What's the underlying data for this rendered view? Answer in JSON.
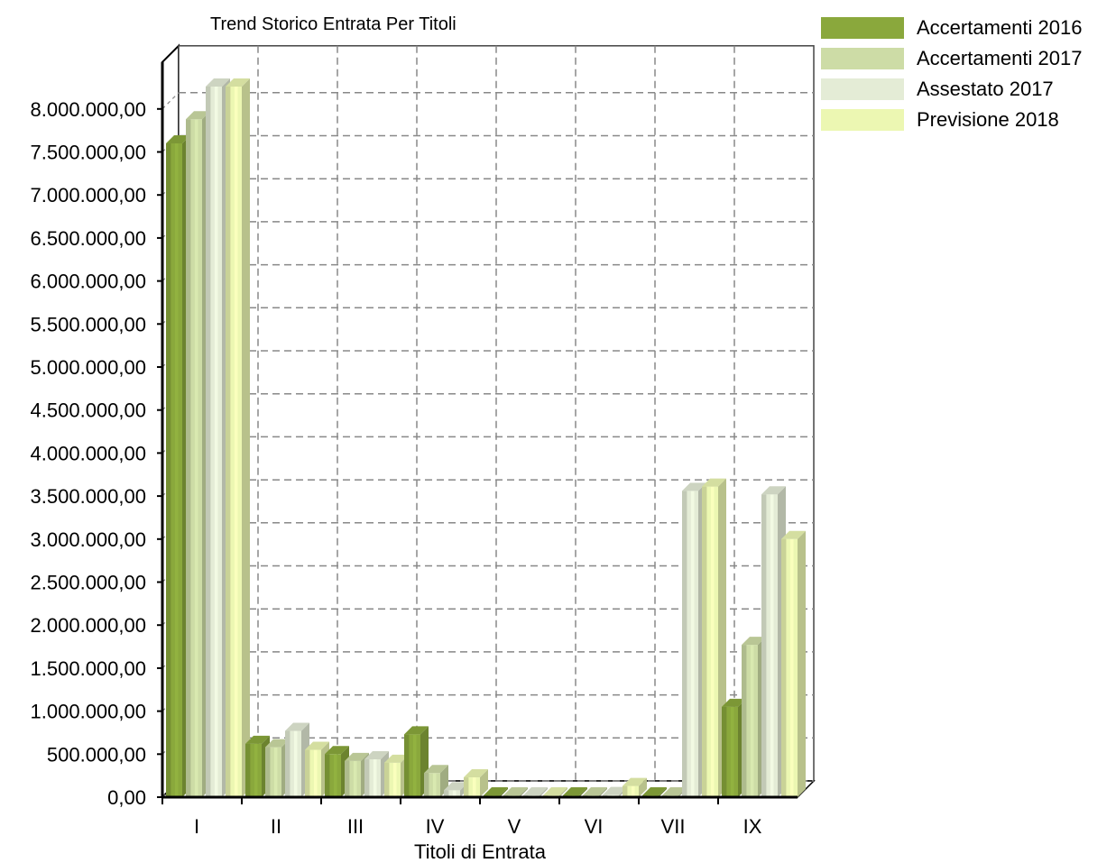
{
  "chart_data": {
    "type": "bar",
    "title": "Trend Storico Entrata Per Titoli",
    "xlabel": "Titoli di Entrata",
    "ylabel": "",
    "categories": [
      "I",
      "II",
      "III",
      "IV",
      "V",
      "VI",
      "VII",
      "IX"
    ],
    "ylim": [
      0,
      8000000
    ],
    "yticks": [
      0,
      500000,
      1000000,
      1500000,
      2000000,
      2500000,
      3000000,
      3500000,
      4000000,
      4500000,
      5000000,
      5500000,
      6000000,
      6500000,
      7000000,
      7500000,
      8000000
    ],
    "ytick_labels": [
      "0,00",
      "500.000,00",
      "1.000.000,00",
      "1.500.000,00",
      "2.000.000,00",
      "2.500.000,00",
      "3.000.000,00",
      "3.500.000,00",
      "4.000.000,00",
      "4.500.000,00",
      "5.000.000,00",
      "5.500.000,00",
      "6.000.000,00",
      "6.500.000,00",
      "7.000.000,00",
      "7.500.000,00",
      "8.000.000,00"
    ],
    "grid": true,
    "legend_position": "top-right",
    "series": [
      {
        "name": "Accertamenti 2016",
        "color": "#8aa83c",
        "values": [
          7600000,
          620000,
          500000,
          730000,
          0,
          0,
          0,
          1050000
        ]
      },
      {
        "name": "Accertamenti 2017",
        "color": "#cddca6",
        "values": [
          7880000,
          580000,
          420000,
          280000,
          10000,
          5000,
          10000,
          1770000
        ]
      },
      {
        "name": "Assestato 2017",
        "color": "#e4ecd6",
        "values": [
          8260000,
          770000,
          440000,
          80000,
          15000,
          25000,
          3560000,
          3520000
        ]
      },
      {
        "name": "Previsione 2018",
        "color": "#ecf7b2",
        "values": [
          8260000,
          550000,
          400000,
          230000,
          10000,
          130000,
          3610000,
          3000000
        ]
      }
    ]
  }
}
